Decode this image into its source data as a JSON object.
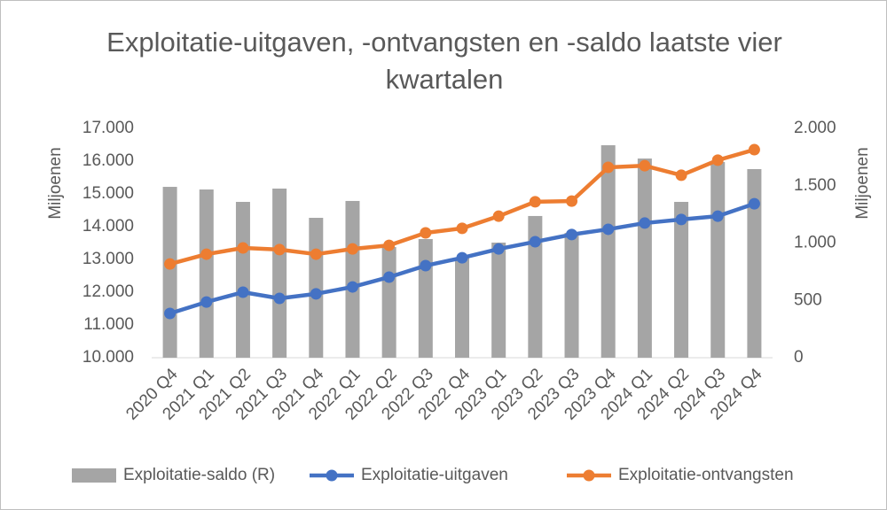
{
  "chart_data": {
    "type": "bar_line",
    "title": "Exploitatie-uitgaven, -ontvangsten en -saldo laatste vier kwartalen",
    "ylabel": "Miljoenen",
    "y2label": "Miljoenen",
    "categories": [
      "2020 Q4",
      "2021 Q1",
      "2021 Q2",
      "2021 Q3",
      "2021 Q4",
      "2022 Q1",
      "2022 Q2",
      "2022 Q3",
      "2022 Q4",
      "2023 Q1",
      "2023 Q2",
      "2023 Q3",
      "2023 Q4",
      "2024 Q1",
      "2024 Q2",
      "2024 Q3",
      "2024 Q4"
    ],
    "series": [
      {
        "name": "Exploitatie-saldo (R)",
        "type": "bar",
        "axis": "y2",
        "color": "#a5a5a5",
        "values": [
          1490,
          1467,
          1359,
          1475,
          1220,
          1367,
          965,
          1035,
          873,
          1004,
          1236,
          1089,
          1853,
          1737,
          1359,
          1707,
          1645
        ]
      },
      {
        "name": "Exploitatie-uitgaven",
        "type": "line",
        "color": "#4472c4",
        "values": [
          11351,
          11700,
          12000,
          11810,
          11950,
          12160,
          12460,
          12810,
          13050,
          13320,
          13540,
          13760,
          13920,
          14110,
          14220,
          14320,
          14700
        ]
      },
      {
        "name": "Exploitatie-ontvangsten",
        "type": "line",
        "color": "#ed7d31",
        "values": [
          12860,
          13160,
          13350,
          13300,
          13160,
          13320,
          13430,
          13810,
          13950,
          14320,
          14760,
          14780,
          15810,
          15860,
          15570,
          16030,
          16350
        ]
      }
    ],
    "ylim": [
      10000,
      17000
    ],
    "yticks": [
      {
        "value": 10000,
        "label": "10.000"
      },
      {
        "value": 11000,
        "label": "11.000"
      },
      {
        "value": 12000,
        "label": "12.000"
      },
      {
        "value": 13000,
        "label": "13.000"
      },
      {
        "value": 14000,
        "label": "14.000"
      },
      {
        "value": 15000,
        "label": "15.000"
      },
      {
        "value": 16000,
        "label": "16.000"
      },
      {
        "value": 17000,
        "label": "17.000"
      }
    ],
    "y2lim": [
      0,
      2000
    ],
    "y2ticks": [
      0,
      500,
      {
        "value": 1000,
        "label": "1.000"
      },
      {
        "value": 1500,
        "label": "1.500"
      },
      {
        "value": 2000,
        "label": "2.000"
      }
    ],
    "grid": false,
    "legend": "bottom"
  }
}
